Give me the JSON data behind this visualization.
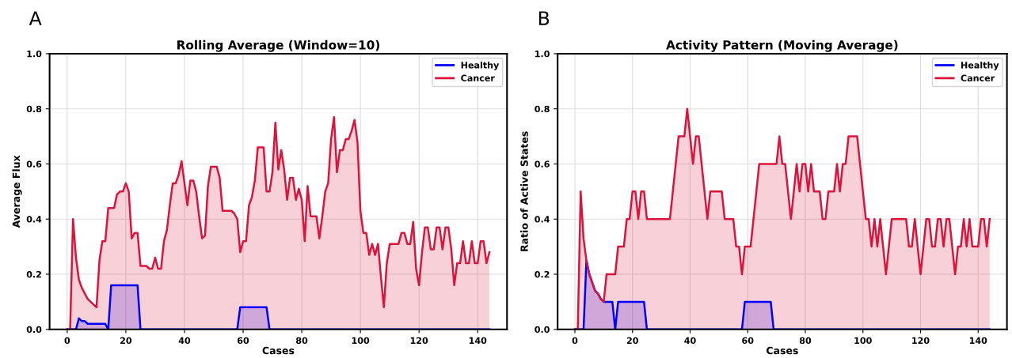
{
  "chart_data": [
    {
      "type": "area",
      "title": "Rolling Average (Window=10)",
      "xlabel": "Cases",
      "ylabel": "Average Flux",
      "annotations": [
        "A"
      ],
      "xlim": [
        -6,
        150
      ],
      "xticks": [
        0,
        20,
        40,
        60,
        80,
        100,
        120,
        140
      ],
      "ylim": [
        0,
        1.0
      ],
      "yticks": [
        {
          "value": 0,
          "label": "0.0"
        },
        {
          "value": 0.2,
          "label": "0.2"
        },
        {
          "value": 0.4,
          "label": "0.4"
        },
        {
          "value": 0.6,
          "label": "0.6"
        },
        {
          "value": 0.8,
          "label": "0.8"
        },
        {
          "value": 1.0,
          "label": "1.0"
        }
      ],
      "grid": true,
      "legend": "top right",
      "series": [
        {
          "name": "Healthy",
          "color": "#0000ff",
          "x": [
            0,
            3,
            4,
            5,
            6,
            7,
            8,
            10,
            13,
            14,
            15,
            24,
            25,
            58,
            59,
            68,
            69,
            144
          ],
          "values": [
            0,
            0,
            0.04,
            0.03,
            0.03,
            0.02,
            0.02,
            0.02,
            0.02,
            0,
            0.16,
            0.16,
            0,
            0,
            0.08,
            0.08,
            0,
            0
          ]
        },
        {
          "name": "Cancer",
          "color": "#dc143c",
          "x": [
            0,
            1,
            2,
            3,
            4,
            5,
            6,
            7,
            8,
            9,
            10,
            11,
            12,
            13,
            14,
            15,
            16,
            17,
            18,
            19,
            20,
            21,
            22,
            23,
            24,
            25,
            26,
            27,
            28,
            29,
            30,
            31,
            32,
            33,
            34,
            35,
            36,
            37,
            38,
            39,
            40,
            41,
            42,
            43,
            44,
            45,
            46,
            47,
            48,
            49,
            50,
            51,
            52,
            53,
            54,
            55,
            56,
            57,
            58,
            59,
            60,
            61,
            62,
            63,
            64,
            65,
            66,
            67,
            68,
            69,
            70,
            71,
            72,
            73,
            74,
            75,
            76,
            77,
            78,
            79,
            80,
            81,
            82,
            83,
            84,
            85,
            86,
            87,
            88,
            89,
            90,
            91,
            92,
            93,
            94,
            95,
            96,
            97,
            98,
            99,
            100,
            101,
            102,
            103,
            104,
            105,
            106,
            107,
            108,
            109,
            110,
            111,
            112,
            113,
            114,
            115,
            116,
            117,
            118,
            119,
            120,
            121,
            122,
            123,
            124,
            125,
            126,
            127,
            128,
            129,
            130,
            131,
            132,
            133,
            134,
            135,
            136,
            137,
            138,
            139,
            140,
            141,
            142,
            143,
            144
          ],
          "values": [
            0,
            0,
            0.4,
            0.26,
            0.18,
            0.15,
            0.13,
            0.11,
            0.1,
            0.09,
            0.08,
            0.25,
            0.32,
            0.32,
            0.44,
            0.44,
            0.44,
            0.49,
            0.5,
            0.5,
            0.53,
            0.5,
            0.33,
            0.35,
            0.35,
            0.23,
            0.23,
            0.23,
            0.22,
            0.22,
            0.26,
            0.22,
            0.22,
            0.32,
            0.36,
            0.45,
            0.53,
            0.53,
            0.56,
            0.61,
            0.53,
            0.45,
            0.54,
            0.54,
            0.5,
            0.41,
            0.33,
            0.34,
            0.52,
            0.59,
            0.59,
            0.59,
            0.55,
            0.43,
            0.43,
            0.43,
            0.43,
            0.42,
            0.4,
            0.28,
            0.32,
            0.32,
            0.45,
            0.48,
            0.54,
            0.66,
            0.66,
            0.66,
            0.5,
            0.5,
            0.57,
            0.75,
            0.58,
            0.65,
            0.58,
            0.47,
            0.55,
            0.55,
            0.47,
            0.51,
            0.47,
            0.32,
            0.52,
            0.41,
            0.41,
            0.41,
            0.33,
            0.41,
            0.5,
            0.53,
            0.69,
            0.77,
            0.57,
            0.65,
            0.65,
            0.69,
            0.69,
            0.72,
            0.76,
            0.68,
            0.43,
            0.35,
            0.35,
            0.27,
            0.31,
            0.27,
            0.31,
            0.19,
            0.08,
            0.24,
            0.31,
            0.31,
            0.31,
            0.31,
            0.35,
            0.35,
            0.31,
            0.31,
            0.39,
            0.22,
            0.16,
            0.28,
            0.37,
            0.37,
            0.29,
            0.29,
            0.37,
            0.37,
            0.29,
            0.37,
            0.37,
            0.29,
            0.16,
            0.24,
            0.24,
            0.32,
            0.24,
            0.24,
            0.32,
            0.24,
            0.24,
            0.32,
            0.32,
            0.24,
            0.28
          ]
        }
      ]
    },
    {
      "type": "area",
      "title": "Activity Pattern (Moving Average)",
      "xlabel": "Cases",
      "ylabel": "Ratio of Active States",
      "annotations": [
        "B"
      ],
      "xlim": [
        -6,
        150
      ],
      "xticks": [
        0,
        20,
        40,
        60,
        80,
        100,
        120,
        140
      ],
      "ylim": [
        0,
        1.0
      ],
      "yticks": [
        {
          "value": 0,
          "label": "0.0"
        },
        {
          "value": 0.2,
          "label": "0.2"
        },
        {
          "value": 0.4,
          "label": "0.4"
        },
        {
          "value": 0.6,
          "label": "0.6"
        },
        {
          "value": 0.8,
          "label": "0.8"
        },
        {
          "value": 1.0,
          "label": "1.0"
        }
      ],
      "grid": true,
      "legend": "top right",
      "series": [
        {
          "name": "Healthy",
          "color": "#0000ff",
          "x": [
            0,
            3,
            4,
            5,
            6,
            7,
            8,
            9,
            10,
            13,
            14,
            15,
            24,
            25,
            58,
            59,
            68,
            69,
            144
          ],
          "values": [
            0,
            0,
            0.25,
            0.2,
            0.17,
            0.14,
            0.13,
            0.11,
            0.1,
            0.1,
            0,
            0.1,
            0.1,
            0,
            0,
            0.1,
            0.1,
            0,
            0
          ]
        },
        {
          "name": "Cancer",
          "color": "#dc143c",
          "x": [
            0,
            1,
            2,
            3,
            4,
            5,
            6,
            7,
            8,
            9,
            10,
            11,
            12,
            13,
            14,
            15,
            16,
            17,
            18,
            19,
            20,
            21,
            22,
            23,
            24,
            25,
            26,
            27,
            28,
            29,
            30,
            31,
            32,
            33,
            34,
            35,
            36,
            37,
            38,
            39,
            40,
            41,
            42,
            43,
            44,
            45,
            46,
            47,
            48,
            49,
            50,
            51,
            52,
            53,
            54,
            55,
            56,
            57,
            58,
            59,
            60,
            61,
            62,
            63,
            64,
            65,
            66,
            67,
            68,
            69,
            70,
            71,
            72,
            73,
            74,
            75,
            76,
            77,
            78,
            79,
            80,
            81,
            82,
            83,
            84,
            85,
            86,
            87,
            88,
            89,
            90,
            91,
            92,
            93,
            94,
            95,
            96,
            97,
            98,
            99,
            100,
            101,
            102,
            103,
            104,
            105,
            106,
            107,
            108,
            109,
            110,
            111,
            112,
            113,
            114,
            115,
            116,
            117,
            118,
            119,
            120,
            121,
            122,
            123,
            124,
            125,
            126,
            127,
            128,
            129,
            130,
            131,
            132,
            133,
            134,
            135,
            136,
            137,
            138,
            139,
            140,
            141,
            142,
            143,
            144
          ],
          "values": [
            0,
            0,
            0.5,
            0.33,
            0.25,
            0.2,
            0.17,
            0.14,
            0.13,
            0.11,
            0.1,
            0.2,
            0.2,
            0.2,
            0.2,
            0.3,
            0.3,
            0.3,
            0.4,
            0.4,
            0.5,
            0.5,
            0.4,
            0.5,
            0.5,
            0.4,
            0.4,
            0.4,
            0.4,
            0.4,
            0.4,
            0.4,
            0.4,
            0.4,
            0.5,
            0.6,
            0.7,
            0.7,
            0.7,
            0.8,
            0.7,
            0.6,
            0.7,
            0.7,
            0.6,
            0.5,
            0.4,
            0.5,
            0.5,
            0.5,
            0.5,
            0.5,
            0.4,
            0.4,
            0.4,
            0.4,
            0.3,
            0.3,
            0.2,
            0.3,
            0.3,
            0.3,
            0.4,
            0.5,
            0.6,
            0.6,
            0.6,
            0.6,
            0.6,
            0.6,
            0.6,
            0.7,
            0.6,
            0.6,
            0.5,
            0.4,
            0.5,
            0.6,
            0.5,
            0.6,
            0.6,
            0.5,
            0.6,
            0.5,
            0.5,
            0.5,
            0.4,
            0.4,
            0.5,
            0.5,
            0.5,
            0.6,
            0.5,
            0.6,
            0.6,
            0.7,
            0.7,
            0.7,
            0.7,
            0.6,
            0.5,
            0.4,
            0.4,
            0.3,
            0.4,
            0.3,
            0.4,
            0.3,
            0.2,
            0.3,
            0.4,
            0.4,
            0.4,
            0.4,
            0.4,
            0.4,
            0.3,
            0.3,
            0.4,
            0.3,
            0.2,
            0.3,
            0.4,
            0.4,
            0.3,
            0.3,
            0.4,
            0.4,
            0.3,
            0.4,
            0.4,
            0.3,
            0.2,
            0.3,
            0.3,
            0.4,
            0.3,
            0.4,
            0.3,
            0.3,
            0.3,
            0.4,
            0.4,
            0.3,
            0.4
          ]
        }
      ]
    }
  ]
}
